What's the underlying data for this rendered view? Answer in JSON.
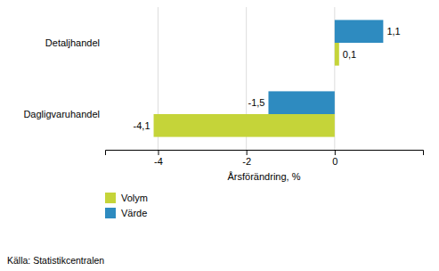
{
  "chart_data": {
    "type": "bar",
    "orientation": "horizontal",
    "categories": [
      "Dagligvaruhandel",
      "Detaljhandel"
    ],
    "series": [
      {
        "name": "Volym",
        "color": "#c5d439",
        "values": [
          -4.1,
          0.1
        ],
        "value_labels": [
          "-4,1",
          "0,1"
        ]
      },
      {
        "name": "Värde",
        "color": "#2e8bc0",
        "values": [
          -1.5,
          1.1
        ],
        "value_labels": [
          "-1,5",
          "1,1"
        ]
      }
    ],
    "xlabel": "Årsförändring, %",
    "xlim": [
      -5.2,
      2.0
    ],
    "xticks": [
      -4,
      -2,
      0
    ],
    "grid": true,
    "data_labels": true,
    "legend": "bottom",
    "annotations": [
      {
        "text": "Källa: Statistikcentralen"
      }
    ]
  }
}
